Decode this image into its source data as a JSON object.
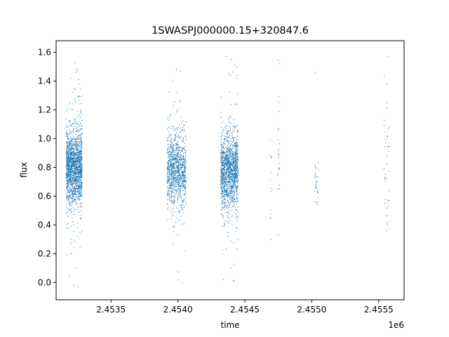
{
  "chart_data": {
    "type": "scatter",
    "title": "1SWASPJ000000.15+320847.6",
    "xlabel": "time",
    "ylabel": "flux",
    "x_offset_label": "1e6",
    "x_axis_scale": 1000000,
    "xlim": [
      2453090,
      2455690
    ],
    "ylim": [
      -0.12,
      1.68
    ],
    "xticks": [
      2453500,
      2454000,
      2454500,
      2455000,
      2455500
    ],
    "xtick_labels": [
      "2.4535",
      "2.4540",
      "2.4545",
      "2.4550",
      "2.4555"
    ],
    "yticks": [
      0.0,
      0.2,
      0.4,
      0.6,
      0.8,
      1.0,
      1.2,
      1.4,
      1.6
    ],
    "ytick_labels": [
      "0.0",
      "0.2",
      "0.4",
      "0.6",
      "0.8",
      "1.0",
      "1.2",
      "1.4",
      "1.6"
    ],
    "grid": false,
    "marker_color": "#1f77b4",
    "series": [
      {
        "clusters": [
          {
            "x_range": [
              2453165,
              2453285
            ],
            "y_center": 0.8,
            "y_spread": 0.12,
            "count": 1800
          },
          {
            "x_range": [
              2453920,
              2454060
            ],
            "y_center": 0.78,
            "y_spread": 0.12,
            "count": 1100
          },
          {
            "x_range": [
              2454320,
              2454450
            ],
            "y_center": 0.78,
            "y_spread": 0.12,
            "count": 1500
          },
          {
            "x_range": [
              2454690,
              2454700
            ],
            "y_center": 0.7,
            "y_spread": 0.15,
            "count": 12
          },
          {
            "x_range": [
              2454745,
              2454760
            ],
            "y_center": 0.85,
            "y_spread": 0.2,
            "count": 25
          },
          {
            "x_range": [
              2455020,
              2455050
            ],
            "y_center": 0.72,
            "y_spread": 0.1,
            "count": 30
          },
          {
            "x_range": [
              2455540,
              2455580
            ],
            "y_center": 0.8,
            "y_spread": 0.25,
            "count": 40
          }
        ],
        "outliers": [
          [
            2453230,
            1.52
          ],
          [
            2453240,
            1.48
          ],
          [
            2453250,
            1.47
          ],
          [
            2453200,
            1.42
          ],
          [
            2453270,
            1.35
          ],
          [
            2453225,
            -0.02
          ],
          [
            2453255,
            -0.03
          ],
          [
            2453190,
            0.05
          ],
          [
            2453240,
            0.1
          ],
          [
            2453990,
            1.48
          ],
          [
            2454020,
            1.47
          ],
          [
            2453960,
            1.4
          ],
          [
            2454000,
            0.02
          ],
          [
            2454030,
            0.0
          ],
          [
            2454360,
            1.57
          ],
          [
            2454400,
            1.55
          ],
          [
            2454380,
            1.45
          ],
          [
            2454340,
            0.02
          ],
          [
            2454420,
            0.01
          ],
          [
            2454760,
            1.52
          ],
          [
            2454755,
            1.25
          ],
          [
            2455025,
            1.46
          ],
          [
            2455565,
            1.57
          ],
          [
            2455560,
            1.38
          ],
          [
            2455560,
            0.36
          ],
          [
            2455565,
            0.4
          ],
          [
            2454695,
            0.3
          ],
          [
            2454690,
            0.45
          ]
        ]
      }
    ]
  }
}
